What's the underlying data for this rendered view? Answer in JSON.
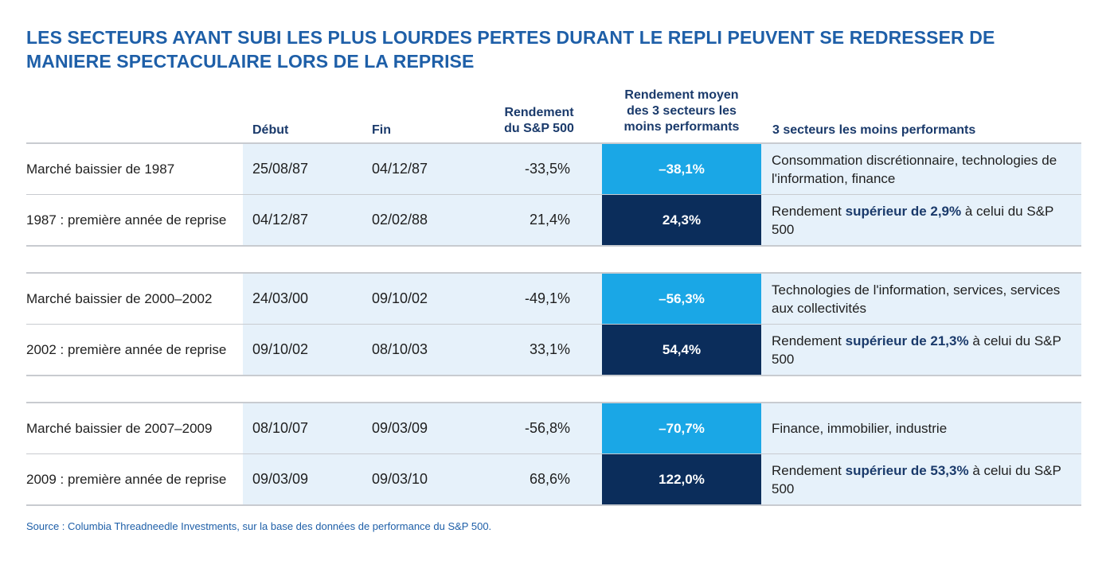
{
  "title": {
    "line1": "LES SECTEURS AYANT SUBI LES PLUS LOURDES PERTES DURANT LE REPLI PEUVENT SE REDRESSER DE",
    "line2": "MANIERE SPECTACULAIRE LORS DE LA REPRISE"
  },
  "headers": {
    "debut": "Début",
    "fin": "Fin",
    "sp_line1": "Rendement",
    "sp_line2": "du S&P 500",
    "avg_line1": "Rendement moyen",
    "avg_line2": "des 3 secteurs les",
    "avg_line3": "moins performants",
    "sectors": "3 secteurs les moins performants"
  },
  "rows": [
    {
      "label": "Marché baissier de 1987",
      "debut": "25/08/87",
      "fin": "04/12/87",
      "sp": "-33,5%",
      "avg": "–38,1%",
      "sect_text": "Consommation discrétionnaire, technologies de l'information, finance"
    },
    {
      "label": "1987 : première année de reprise",
      "debut": "04/12/87",
      "fin": "02/02/88",
      "sp": "21,4%",
      "avg": "24,3%",
      "sect_pre": "Rendement ",
      "sect_bold": "supérieur de 2,9%",
      "sect_post": " à celui du S&P 500"
    },
    {
      "label": "Marché baissier de 2000–2002",
      "debut": "24/03/00",
      "fin": "09/10/02",
      "sp": "-49,1%",
      "avg": "–56,3%",
      "sect_text": "Technologies de l'information, services, services aux collectivités"
    },
    {
      "label": "2002 : première année de reprise",
      "debut": "09/10/02",
      "fin": "08/10/03",
      "sp": "33,1%",
      "avg": "54,4%",
      "sect_pre": "Rendement ",
      "sect_bold": "supérieur de 21,3%",
      "sect_post": " à celui du S&P 500"
    },
    {
      "label": "Marché baissier de 2007–2009",
      "debut": "08/10/07",
      "fin": "09/03/09",
      "sp": "-56,8%",
      "avg": "–70,7%",
      "sect_text": "Finance, immobilier, industrie"
    },
    {
      "label": "2009 : première année de reprise",
      "debut": "09/03/09",
      "fin": "09/03/10",
      "sp": "68,6%",
      "avg": "122,0%",
      "sect_pre": "Rendement ",
      "sect_bold": "supérieur de 53,3%",
      "sect_post": " à celui du S&P 500"
    }
  ],
  "colors": {
    "title_blue": "#1e5fa8",
    "bear_highlight": "#1aa7e6",
    "recovery_highlight": "#0b2d5b",
    "band": "#e6f1fa"
  },
  "source": "Source : Columbia Threadneedle Investments, sur la base des données de performance du S&P 500."
}
